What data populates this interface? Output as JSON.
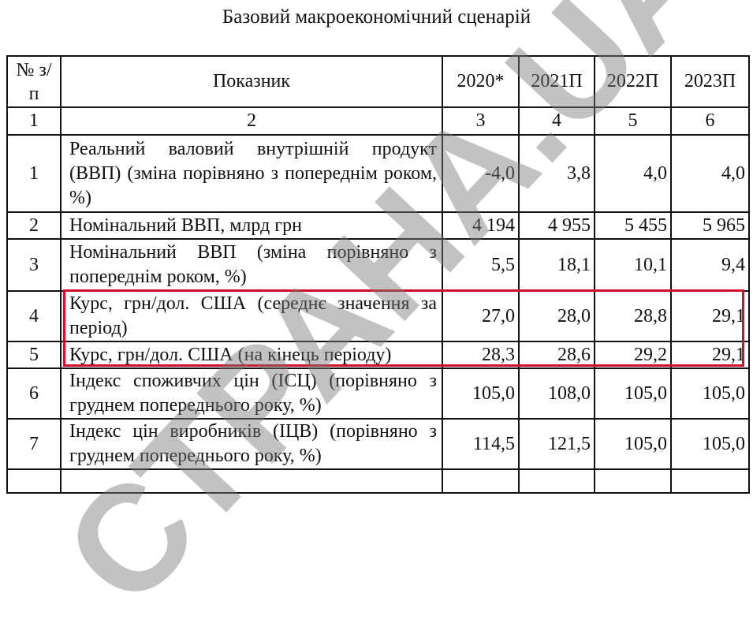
{
  "title": "Базовий макроекономічний сценарій",
  "header": {
    "num": "№ з/п",
    "indicator": "Показник",
    "years": [
      "2020*",
      "2021П",
      "2022П",
      "2023П"
    ]
  },
  "column_numbers": [
    "1",
    "2",
    "3",
    "4",
    "5",
    "6"
  ],
  "rows": [
    {
      "num": "1",
      "label": "Реальний валовий внутрішній продукт (ВВП) (зміна порівняно з попереднім роком, %)",
      "values": [
        "-4,0",
        "3,8",
        "4,0",
        "4,0"
      ]
    },
    {
      "num": "2",
      "label": "Номінальний ВВП, млрд грн",
      "values": [
        "4 194",
        "4 955",
        "5 455",
        "5 965"
      ]
    },
    {
      "num": "3",
      "label": "Номінальний ВВП (зміна порівняно з попереднім роком, %)",
      "values": [
        "5,5",
        "18,1",
        "10,1",
        "9,4"
      ]
    },
    {
      "num": "4",
      "label": "Курс, грн/дол. США (середнє значення за період)",
      "values": [
        "27,0",
        "28,0",
        "28,8",
        "29,1"
      ]
    },
    {
      "num": "5",
      "label": "Курс, грн/дол. США (на кінець періоду)",
      "values": [
        "28,3",
        "28,6",
        "29,2",
        "29,1"
      ]
    },
    {
      "num": "6",
      "label": "Індекс споживчих цін (ІСЦ) (порівняно з груднем попереднього року, %)",
      "values": [
        "105,0",
        "108,0",
        "105,0",
        "105,0"
      ]
    },
    {
      "num": "7",
      "label": "Індекс цін виробників (ІЦВ) (порівняно з груднем попереднього року, %)",
      "values": [
        "114,5",
        "121,5",
        "105,0",
        "105,0"
      ]
    }
  ],
  "watermark": "СТРАНА.UA",
  "highlight_color": "#d0102a"
}
